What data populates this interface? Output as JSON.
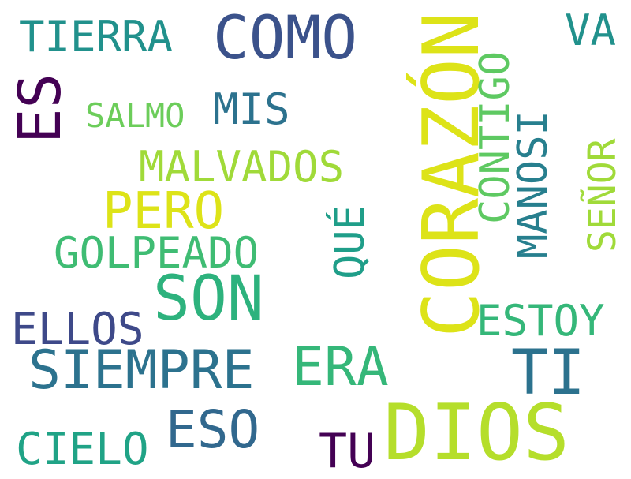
{
  "words": {
    "dios": {
      "text": "DIOS",
      "color": "#b5de2b"
    },
    "corazon": {
      "text": "CORAZÓN",
      "color": "#dde318"
    },
    "son": {
      "text": "SON",
      "color": "#2db27d"
    },
    "como": {
      "text": "COMO",
      "color": "#3b528b"
    },
    "ti": {
      "text": "TI",
      "color": "#2c728e"
    },
    "es": {
      "text": "ES",
      "color": "#440154"
    },
    "siempre": {
      "text": "SIEMPRE",
      "color": "#2c728e"
    },
    "era": {
      "text": "ERA",
      "color": "#35b779"
    },
    "eso": {
      "text": "ESO",
      "color": "#31688e"
    },
    "pero": {
      "text": "PERO",
      "color": "#dde318"
    },
    "tu": {
      "text": "TU",
      "color": "#440154"
    },
    "cielo": {
      "text": "CIELO",
      "color": "#20a386"
    },
    "ellos": {
      "text": "ELLOS",
      "color": "#3e4989"
    },
    "estoy": {
      "text": "ESTOY",
      "color": "#35b779"
    },
    "golpeado": {
      "text": "GOLPEADO",
      "color": "#3fbc73"
    },
    "malvados": {
      "text": "MALVADOS",
      "color": "#a0da39"
    },
    "contigo": {
      "text": "CONTIGO",
      "color": "#5ec962"
    },
    "manosi": {
      "text": "MANOSI",
      "color": "#277f8e"
    },
    "tierra": {
      "text": "TIERRA",
      "color": "#21918c"
    },
    "que": {
      "text": "QUÉ",
      "color": "#1f9e89"
    },
    "mis": {
      "text": "MIS",
      "color": "#2c728e"
    },
    "senor": {
      "text": "SEÑOR",
      "color": "#a0da39"
    },
    "va": {
      "text": "VA",
      "color": "#21918c"
    },
    "salmo": {
      "text": "SALMO",
      "color": "#6ccd5a"
    }
  }
}
